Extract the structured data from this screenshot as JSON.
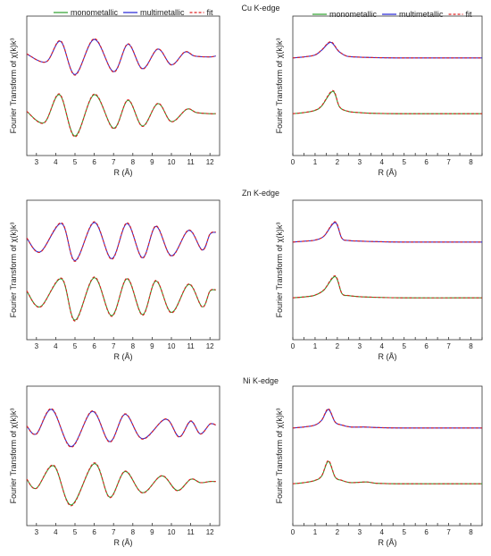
{
  "legend": {
    "mono": "monometallic",
    "multi": "multimetallic",
    "fit": "fit"
  },
  "colors": {
    "mono": "#2ca02c",
    "multi": "#2b2bd8",
    "fit": "#e02020"
  },
  "chart_data": [
    {
      "id": "cu_k",
      "type": "line",
      "title": "",
      "xlabel": "R (Å)",
      "ylabel": "Fourier Transform of χ(k)k³",
      "xlim": [
        2.5,
        12.5
      ],
      "xticks": [
        3,
        4,
        5,
        6,
        7,
        8,
        9,
        10,
        11,
        12
      ],
      "series": [
        {
          "name": "multimetallic",
          "role": "multi",
          "offset": "upper",
          "x": [
            2.5,
            3.5,
            4.25,
            5.0,
            6.0,
            7.0,
            7.75,
            8.5,
            9.3,
            10.0,
            10.7,
            11.2,
            12.0,
            12.3
          ],
          "y": [
            0.2,
            -0.2,
            0.85,
            -0.85,
            0.95,
            -0.7,
            0.7,
            -0.55,
            0.45,
            -0.35,
            0.3,
            0.1,
            0.05,
            0.1
          ]
        },
        {
          "name": "monometallic",
          "role": "mono",
          "offset": "lower",
          "x": [
            2.5,
            3.4,
            4.2,
            5.0,
            6.0,
            7.0,
            7.75,
            8.5,
            9.3,
            10.0,
            10.8,
            11.3,
            12.0,
            12.3
          ],
          "y": [
            0.1,
            -0.4,
            0.85,
            -1.0,
            0.85,
            -0.65,
            0.6,
            -0.55,
            0.45,
            -0.35,
            0.2,
            0.05,
            0.0,
            0.0
          ]
        }
      ]
    },
    {
      "id": "cu_k_right",
      "type": "line",
      "title": "Cu K-edge",
      "xlabel": "R (Å)",
      "ylabel": "Fourier Transform of χ(k)k³",
      "xlim": [
        0,
        8.5
      ],
      "xticks": [
        0,
        0.5,
        1,
        1.5,
        2,
        2.5,
        3,
        3.5,
        4,
        4.5,
        5,
        5.5,
        6,
        6.5,
        7,
        7.5,
        8,
        8.5
      ],
      "series": [
        {
          "name": "multimetallic",
          "role": "multi",
          "offset": "upper",
          "x": [
            0,
            0.5,
            1.0,
            1.3,
            1.7,
            2.05,
            2.4,
            2.8,
            3.5,
            5,
            8.5
          ],
          "y": [
            0.0,
            0.05,
            0.15,
            0.4,
            0.8,
            0.35,
            0.1,
            0.05,
            0.02,
            0.0,
            0.0
          ]
        },
        {
          "name": "monometallic",
          "role": "mono",
          "offset": "lower",
          "x": [
            0,
            0.5,
            1.0,
            1.3,
            1.8,
            2.1,
            2.5,
            3.0,
            3.5,
            5,
            8.5
          ],
          "y": [
            0.0,
            0.05,
            0.15,
            0.35,
            1.0,
            0.3,
            0.1,
            0.05,
            0.02,
            0.0,
            0.0
          ]
        }
      ]
    },
    {
      "id": "zn_k",
      "type": "line",
      "title": "",
      "xlabel": "R (Å)",
      "ylabel": "Fourier Transform of χ(k)k³",
      "xlim": [
        2.5,
        12.5
      ],
      "xticks": [
        3,
        4,
        5,
        6,
        7,
        8,
        9,
        10,
        11,
        12
      ],
      "series": [
        {
          "name": "multimetallic",
          "role": "multi",
          "offset": "upper",
          "x": [
            2.5,
            3.2,
            4.3,
            5.0,
            6.0,
            6.9,
            7.7,
            8.5,
            9.2,
            10.0,
            10.9,
            11.6,
            12.0,
            12.3
          ],
          "y": [
            0.2,
            -0.5,
            0.95,
            -0.95,
            1.0,
            -0.85,
            0.95,
            -0.8,
            0.8,
            -0.7,
            0.6,
            -0.4,
            0.4,
            0.5
          ]
        },
        {
          "name": "monometallic",
          "role": "mono",
          "offset": "lower",
          "x": [
            2.5,
            3.2,
            4.3,
            5.0,
            6.0,
            6.9,
            7.7,
            8.5,
            9.2,
            10.0,
            10.9,
            11.6,
            12.0,
            12.3
          ],
          "y": [
            0.3,
            -0.4,
            0.85,
            -1.0,
            0.9,
            -0.8,
            0.85,
            -0.75,
            0.75,
            -0.65,
            0.6,
            -0.4,
            0.3,
            0.35
          ]
        }
      ]
    },
    {
      "id": "zn_k_right",
      "type": "line",
      "title": "Zn K-edge",
      "xlabel": "R (Å)",
      "ylabel": "Fourier Transform of χ(k)k³",
      "xlim": [
        0,
        8.5
      ],
      "xticks": [
        0,
        0.5,
        1,
        1.5,
        2,
        2.5,
        3,
        3.5,
        4,
        4.5,
        5,
        5.5,
        6,
        6.5,
        7,
        7.5,
        8,
        8.5
      ],
      "series": [
        {
          "name": "multimetallic",
          "role": "multi",
          "offset": "upper",
          "x": [
            0,
            0.6,
            1.0,
            1.4,
            1.9,
            2.2,
            2.5,
            3.0,
            3.5,
            5,
            8.5
          ],
          "y": [
            0.0,
            0.05,
            0.1,
            0.3,
            1.0,
            0.2,
            0.08,
            0.05,
            0.03,
            0.0,
            0.0
          ]
        },
        {
          "name": "monometallic",
          "role": "mono",
          "offset": "lower",
          "x": [
            0,
            0.6,
            1.0,
            1.4,
            1.9,
            2.2,
            2.5,
            3.0,
            3.5,
            5,
            8.5
          ],
          "y": [
            0.0,
            0.05,
            0.12,
            0.35,
            0.95,
            0.2,
            0.1,
            0.05,
            0.03,
            0.0,
            0.0
          ]
        }
      ]
    },
    {
      "id": "ni_k",
      "type": "line",
      "title": "",
      "xlabel": "R (Å)",
      "ylabel": "Fourier Transform of χ(k)k³",
      "xlim": [
        2.5,
        12.5
      ],
      "xticks": [
        3,
        4,
        5,
        6,
        7,
        8,
        9,
        10,
        11,
        12
      ],
      "series": [
        {
          "name": "multimetallic",
          "role": "multi",
          "offset": "upper",
          "x": [
            2.5,
            3.0,
            3.8,
            4.8,
            5.9,
            6.8,
            7.6,
            8.5,
            9.7,
            10.4,
            11.0,
            11.5,
            12.0,
            12.3
          ],
          "y": [
            0.1,
            -0.3,
            0.95,
            -0.95,
            0.85,
            -0.7,
            0.7,
            -0.55,
            0.45,
            -0.45,
            0.35,
            -0.3,
            0.2,
            0.15
          ]
        },
        {
          "name": "monometallic",
          "role": "mono",
          "offset": "lower",
          "x": [
            2.5,
            3.0,
            3.9,
            4.8,
            6.0,
            6.8,
            7.6,
            8.5,
            9.5,
            10.3,
            11.0,
            11.5,
            12.0,
            12.3
          ],
          "y": [
            0.2,
            -0.2,
            0.8,
            -0.95,
            0.9,
            -0.6,
            0.55,
            -0.4,
            0.35,
            -0.3,
            0.2,
            0.05,
            0.1,
            0.1
          ]
        }
      ]
    },
    {
      "id": "ni_k_right",
      "type": "line",
      "title": "Ni K-edge",
      "xlabel": "R (Å)",
      "ylabel": "Fourier Transform of χ(k)k³",
      "xlim": [
        0,
        8.5
      ],
      "xticks": [
        0,
        0.5,
        1,
        1.5,
        2,
        2.5,
        3,
        3.5,
        4,
        4.5,
        5,
        5.5,
        6,
        6.5,
        7,
        7.5,
        8,
        8.5
      ],
      "series": [
        {
          "name": "multimetallic",
          "role": "multi",
          "offset": "upper",
          "x": [
            0,
            0.5,
            1.0,
            1.3,
            1.6,
            1.9,
            2.2,
            2.6,
            3.2,
            3.8,
            5,
            8.5
          ],
          "y": [
            0.0,
            0.05,
            0.15,
            0.4,
            0.95,
            0.3,
            0.15,
            0.05,
            0.05,
            0.02,
            0.0,
            0.0
          ]
        },
        {
          "name": "monometallic",
          "role": "mono",
          "offset": "lower",
          "x": [
            0,
            0.5,
            1.0,
            1.3,
            1.6,
            1.9,
            2.2,
            2.6,
            3.3,
            3.8,
            5,
            8.5
          ],
          "y": [
            0.0,
            0.05,
            0.15,
            0.35,
            1.0,
            0.3,
            0.15,
            0.05,
            0.08,
            0.02,
            0.0,
            0.0
          ]
        }
      ]
    }
  ]
}
